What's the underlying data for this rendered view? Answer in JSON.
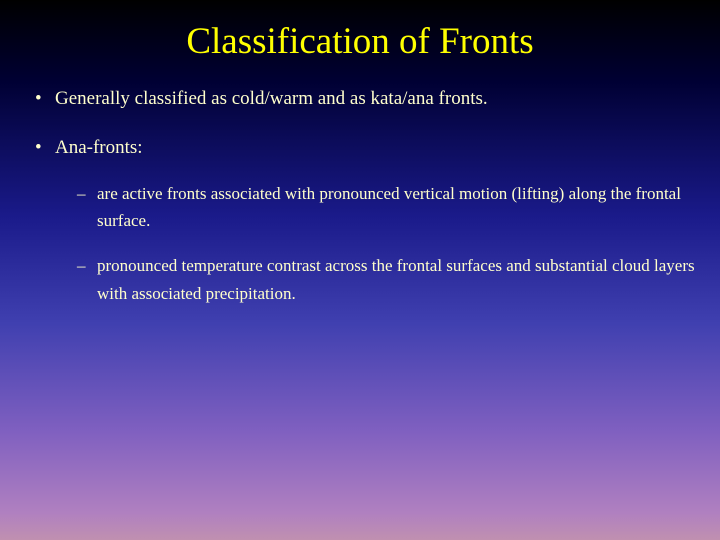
{
  "slide": {
    "title": "Classification of Fronts",
    "title_color": "#ffff00",
    "text_color": "#ffffcc",
    "background_gradient": {
      "stops": [
        "#000000",
        "#000033",
        "#1a1a8a",
        "#4040b0",
        "#8060c0",
        "#b080c0",
        "#c090b0"
      ],
      "positions": [
        0,
        15,
        40,
        60,
        80,
        95,
        100
      ]
    },
    "bullets": [
      {
        "text": "Generally classified as cold/warm and as kata/ana fronts."
      },
      {
        "text": "Ana-fronts:",
        "sub_bullets": [
          "are active fronts associated with pronounced vertical motion (lifting) along the frontal surface.",
          "pronounced temperature contrast across the frontal surfaces and substantial cloud layers with associated precipitation."
        ]
      }
    ],
    "typography": {
      "title_fontsize": 37,
      "bullet_fontsize": 19,
      "sub_bullet_fontsize": 17,
      "font_family": "Garamond"
    }
  }
}
